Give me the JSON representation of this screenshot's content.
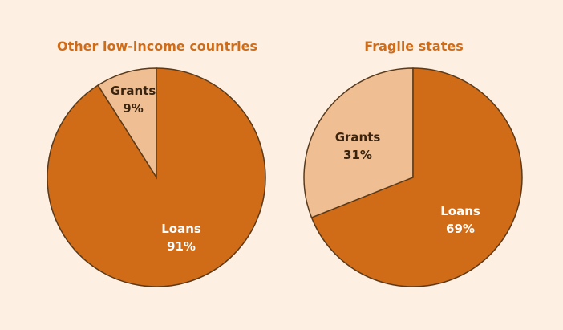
{
  "chart_data": [
    {
      "type": "pie",
      "title": "Other low-income countries",
      "slices": [
        {
          "label": "Grants",
          "value": 9,
          "value_label": "9%",
          "color": "#efbf93",
          "text_color": "#3a2410"
        },
        {
          "label": "Loans",
          "value": 91,
          "value_label": "91%",
          "color": "#d06b18",
          "text_color": "#ffffff"
        }
      ]
    },
    {
      "type": "pie",
      "title": "Fragile states",
      "slices": [
        {
          "label": "Grants",
          "value": 31,
          "value_label": "31%",
          "color": "#efbf93",
          "text_color": "#3a2410"
        },
        {
          "label": "Loans",
          "value": 69,
          "value_label": "69%",
          "color": "#d06b18",
          "text_color": "#ffffff"
        }
      ]
    }
  ],
  "colors": {
    "background": "#fdf0e3",
    "title": "#d06b18",
    "slice_border": "#5a3a1a"
  }
}
